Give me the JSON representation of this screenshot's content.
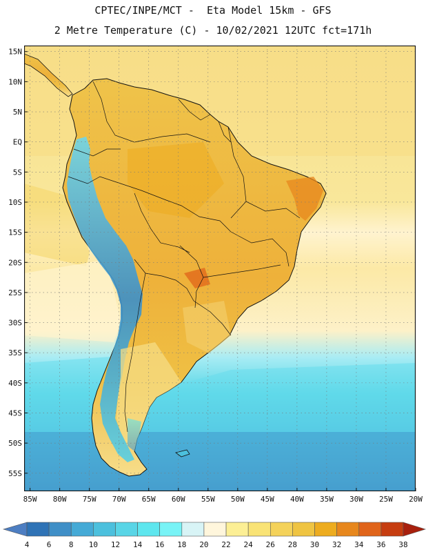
{
  "header": {
    "line1": "CPTEC/INPE/MCT -  Eta Model 15km - GFS",
    "line2": "2 Metre Temperature (C) - 10/02/2021 12UTC fct=171h"
  },
  "map": {
    "lat_labels": [
      "15N",
      "10N",
      "5N",
      "EQ",
      "5S",
      "10S",
      "15S",
      "20S",
      "25S",
      "30S",
      "35S",
      "40S",
      "45S",
      "50S",
      "55S"
    ],
    "lon_labels": [
      "85W",
      "80W",
      "75W",
      "70W",
      "65W",
      "60W",
      "55W",
      "50W",
      "45W",
      "40W",
      "35W",
      "30W",
      "25W",
      "20W"
    ],
    "lat_range": [
      -58,
      16
    ],
    "lon_range": [
      -86,
      -20
    ]
  },
  "colorbar": {
    "labels": [
      "4",
      "6",
      "8",
      "10",
      "12",
      "14",
      "16",
      "18",
      "20",
      "22",
      "24",
      "26",
      "28",
      "30",
      "32",
      "34",
      "36",
      "38"
    ],
    "colors": [
      "#4d7ec2",
      "#2f73b6",
      "#3f8fc7",
      "#45aad6",
      "#4cc0dd",
      "#59d5e6",
      "#5ee6ee",
      "#78f3f6",
      "#d8f4f6",
      "#fff6dc",
      "#fcef95",
      "#f9e375",
      "#f4d25a",
      "#efc442",
      "#edac1f",
      "#e7871d",
      "#e0641a",
      "#c63d10",
      "#a8200d"
    ]
  }
}
